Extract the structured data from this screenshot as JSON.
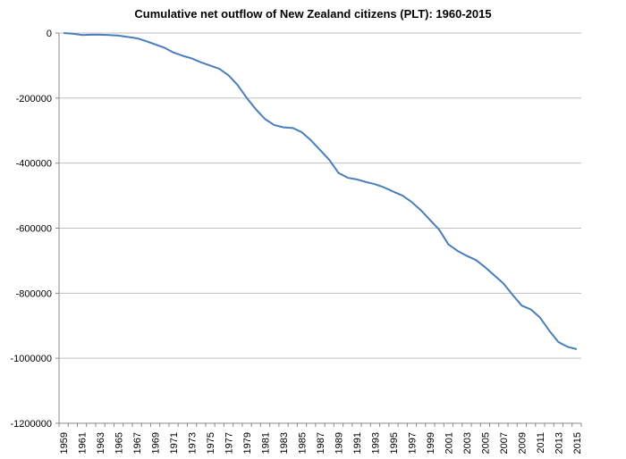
{
  "chart_data": {
    "type": "line",
    "title": "Cumulative net outflow of New Zealand citizens (PLT): 1960-2015",
    "categories": [
      "1959",
      null,
      "1961",
      null,
      "1963",
      null,
      "1965",
      null,
      "1967",
      null,
      "1969",
      null,
      "1971",
      null,
      "1973",
      null,
      "1975",
      null,
      "1977",
      null,
      "1979",
      null,
      "1981",
      null,
      "1983",
      null,
      "1985",
      null,
      "1987",
      null,
      "1989",
      null,
      "1991",
      null,
      "1993",
      null,
      "1995",
      null,
      "1997",
      null,
      "1999",
      null,
      "2001",
      null,
      "2003",
      null,
      "2005",
      null,
      "2007",
      null,
      "2009",
      null,
      "2011",
      null,
      "2013",
      null,
      "2015"
    ],
    "values": [
      0,
      -2000,
      -6000,
      -5000,
      -5000,
      -6000,
      -8000,
      -12000,
      -16000,
      -25000,
      -35000,
      -45000,
      -60000,
      -70000,
      -78000,
      -90000,
      -100000,
      -110000,
      -130000,
      -160000,
      -200000,
      -235000,
      -265000,
      -283000,
      -290000,
      -292000,
      -305000,
      -330000,
      -360000,
      -390000,
      -430000,
      -445000,
      -450000,
      -458000,
      -465000,
      -475000,
      -488000,
      -500000,
      -520000,
      -545000,
      -575000,
      -605000,
      -650000,
      -670000,
      -685000,
      -698000,
      -720000,
      -745000,
      -770000,
      -805000,
      -838000,
      -850000,
      -875000,
      -915000,
      -950000,
      -965000,
      -972000
    ],
    "color": "#4a7ebb",
    "ylim": [
      -1200000,
      0
    ],
    "yticks": [
      0,
      -200000,
      -400000,
      -600000,
      -800000,
      -1000000,
      -1200000
    ],
    "grid": true
  }
}
